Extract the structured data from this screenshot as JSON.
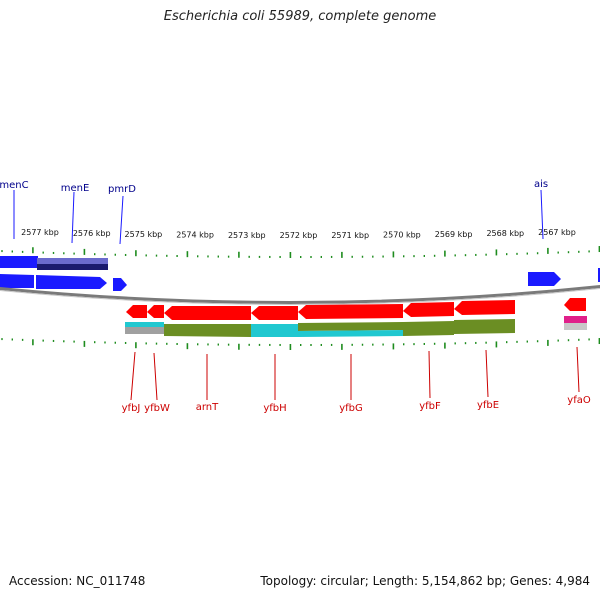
{
  "title": "Escherichia coli 55989, complete genome",
  "footer": {
    "accession": "Accession: NC_011748",
    "summary": "Topology: circular; Length: 5,154,862 bp; Genes: 4,984"
  },
  "colors": {
    "forward_gene": "#1a1aff",
    "reverse_gene": "#ff0000",
    "tick": "#1e8c1e",
    "backbone": "#808080",
    "forward_label": "#00008b",
    "reverse_label": "#cc0000",
    "olive": "#6b8e23",
    "cyan": "#20c8d0",
    "navy": "#1a1a6e",
    "magenta": "#e0208a"
  },
  "scale_labels": [
    "2577 kbp",
    "2576 kbp",
    "2575 kbp",
    "2574 kbp",
    "2573 kbp",
    "2572 kbp",
    "2571 kbp",
    "2570 kbp",
    "2569 kbp",
    "2568 kbp",
    "2567 kbp"
  ],
  "forward_genes": [
    {
      "name": "menC"
    },
    {
      "name": "menE"
    },
    {
      "name": "pmrD"
    },
    {
      "name": "ais"
    }
  ],
  "reverse_genes": [
    {
      "name": "yfbJ"
    },
    {
      "name": "yfbW"
    },
    {
      "name": "arnT"
    },
    {
      "name": "yfbH"
    },
    {
      "name": "yfbG"
    },
    {
      "name": "yfbF"
    },
    {
      "name": "yfbE"
    },
    {
      "name": "yfaO"
    }
  ]
}
